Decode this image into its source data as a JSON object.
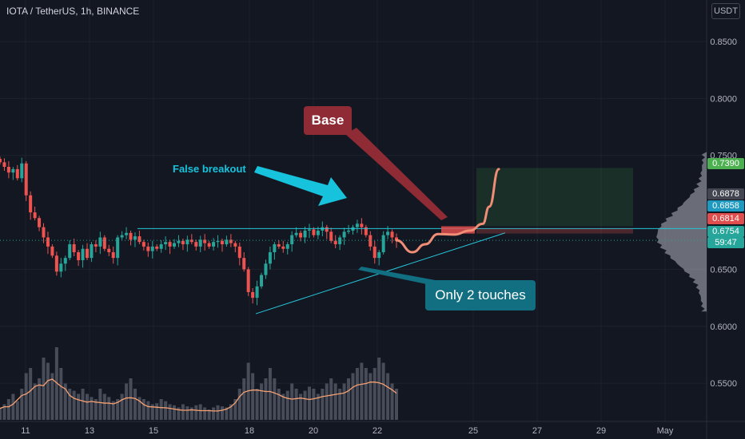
{
  "header": {
    "title": "IOTA / TetherUS, 1h, BINANCE"
  },
  "currency_button": {
    "label": "USDT"
  },
  "annotations": {
    "base": "Base",
    "false_breakout": "False breakout",
    "only_two_touches": "Only 2 touches"
  },
  "price_tags": {
    "target": {
      "value": "0.7390",
      "color": "#4caf50"
    },
    "high": {
      "value": "0.6878",
      "color": "#434651"
    },
    "entry": {
      "value": "0.6858",
      "color": "#1e99c0"
    },
    "stop": {
      "value": "0.6814",
      "color": "#e04d4d"
    },
    "last": {
      "value": "0.6754",
      "color": "#26a69a"
    },
    "countdown": "59:47"
  },
  "colors": {
    "background": "#131722",
    "up": "#26a69a",
    "down": "#ef5350",
    "annotation_cyan": "#26c6da",
    "projection": "#f08d76"
  },
  "chart_data": {
    "type": "candlestick",
    "title": "IOTA / TetherUS, 1h, BINANCE",
    "y_ticks": [
      "0.8500",
      "0.8000",
      "0.7500",
      "0.6500",
      "0.6000",
      "0.5500"
    ],
    "y_tick_values": [
      0.85,
      0.8,
      0.75,
      0.65,
      0.6,
      0.55
    ],
    "x_ticks": [
      "11",
      "13",
      "15",
      "18",
      "20",
      "22",
      "25",
      "27",
      "29",
      "May"
    ],
    "x_tick_days": [
      11,
      13,
      15,
      18,
      20,
      22,
      25,
      27,
      29,
      31
    ],
    "x_range_days": [
      10.2,
      33.5
    ],
    "ylim": [
      0.501,
      0.8865
    ],
    "price_closes": [
      0.744,
      0.74,
      0.735,
      0.738,
      0.73,
      0.743,
      0.715,
      0.7,
      0.695,
      0.687,
      0.678,
      0.67,
      0.662,
      0.648,
      0.655,
      0.66,
      0.672,
      0.665,
      0.658,
      0.668,
      0.66,
      0.672,
      0.67,
      0.678,
      0.668,
      0.665,
      0.66,
      0.678,
      0.68,
      0.682,
      0.676,
      0.679,
      0.674,
      0.67,
      0.666,
      0.67,
      0.668,
      0.672,
      0.674,
      0.67,
      0.673,
      0.675,
      0.672,
      0.676,
      0.674,
      0.67,
      0.676,
      0.673,
      0.67,
      0.674,
      0.675,
      0.672,
      0.676,
      0.673,
      0.67,
      0.66,
      0.65,
      0.63,
      0.625,
      0.635,
      0.645,
      0.655,
      0.665,
      0.672,
      0.67,
      0.668,
      0.672,
      0.68,
      0.682,
      0.678,
      0.684,
      0.685,
      0.68,
      0.684,
      0.687,
      0.683,
      0.675,
      0.672,
      0.678,
      0.683,
      0.684,
      0.687,
      0.69,
      0.687,
      0.68,
      0.67,
      0.66,
      0.665,
      0.68,
      0.683,
      0.678,
      0.6754
    ],
    "price_end_day": 22.6,
    "volume_relative": [
      0.12,
      0.15,
      0.2,
      0.25,
      0.18,
      0.3,
      0.45,
      0.5,
      0.35,
      0.4,
      0.6,
      0.55,
      0.45,
      0.7,
      0.5,
      0.35,
      0.3,
      0.28,
      0.25,
      0.3,
      0.25,
      0.22,
      0.2,
      0.3,
      0.25,
      0.22,
      0.18,
      0.2,
      0.25,
      0.35,
      0.4,
      0.3,
      0.22,
      0.2,
      0.18,
      0.15,
      0.16,
      0.2,
      0.18,
      0.15,
      0.14,
      0.12,
      0.15,
      0.13,
      0.12,
      0.14,
      0.15,
      0.12,
      0.1,
      0.12,
      0.14,
      0.13,
      0.12,
      0.15,
      0.2,
      0.3,
      0.4,
      0.55,
      0.45,
      0.3,
      0.35,
      0.4,
      0.5,
      0.4,
      0.3,
      0.25,
      0.28,
      0.35,
      0.3,
      0.25,
      0.28,
      0.32,
      0.3,
      0.25,
      0.3,
      0.35,
      0.4,
      0.35,
      0.3,
      0.35,
      0.4,
      0.45,
      0.5,
      0.55,
      0.5,
      0.45,
      0.5,
      0.6,
      0.55,
      0.45,
      0.35,
      0.3
    ],
    "resistance_level": 0.6858,
    "support_trendline": {
      "from": {
        "day": 18.2,
        "price": 0.611
      },
      "to": {
        "day": 26.0,
        "price": 0.682
      }
    },
    "target_zone": {
      "from_day": 25.1,
      "to_day": 30.0,
      "low": 0.6878,
      "high": 0.739
    },
    "stop_zone": {
      "from_day": 25.1,
      "to_day": 30.0,
      "low": 0.6814,
      "high": 0.6858
    },
    "base_box": {
      "from_day": 24.0,
      "to_day": 25.05,
      "low": 0.6814,
      "high": 0.6878
    },
    "projection_path": [
      [
        22.6,
        0.6754
      ],
      [
        23.1,
        0.665
      ],
      [
        23.5,
        0.672
      ],
      [
        23.9,
        0.681
      ],
      [
        24.4,
        0.6805
      ],
      [
        24.9,
        0.684
      ],
      [
        25.3,
        0.69
      ],
      [
        25.5,
        0.705
      ],
      [
        25.8,
        0.738
      ]
    ]
  }
}
